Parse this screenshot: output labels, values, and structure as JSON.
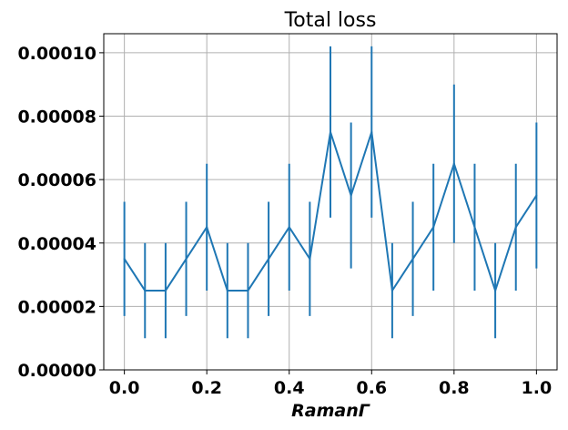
{
  "chart_data": {
    "type": "line",
    "title": "Total loss",
    "xlabel": "RamanΓ",
    "ylabel": "",
    "xlim": [
      -0.05,
      1.05
    ],
    "ylim": [
      0.0,
      0.000106
    ],
    "grid": true,
    "xticks": [
      0.0,
      0.2,
      0.4,
      0.6,
      0.8,
      1.0
    ],
    "xtick_labels": [
      "0.0",
      "0.2",
      "0.4",
      "0.6",
      "0.8",
      "1.0"
    ],
    "yticks": [
      0.0,
      2e-05,
      4e-05,
      6e-05,
      8e-05,
      0.0001
    ],
    "ytick_labels": [
      "0.00000",
      "0.00002",
      "0.00004",
      "0.00006",
      "0.00008",
      "0.00010"
    ],
    "color": "#1f77b4",
    "series": [
      {
        "x": [
          0.0,
          0.05,
          0.1,
          0.15,
          0.2,
          0.25,
          0.3,
          0.35,
          0.4,
          0.45,
          0.5,
          0.55,
          0.6,
          0.65,
          0.7,
          0.75,
          0.8,
          0.85,
          0.9,
          0.95,
          1.0
        ],
        "y": [
          3.5e-05,
          2.5e-05,
          2.5e-05,
          3.5e-05,
          4.5e-05,
          2.5e-05,
          2.5e-05,
          3.5e-05,
          4.5e-05,
          3.5e-05,
          7.5e-05,
          5.5e-05,
          7.5e-05,
          2.5e-05,
          3.5e-05,
          4.5e-05,
          6.5e-05,
          4.5e-05,
          2.5e-05,
          4.5e-05,
          5.5e-05
        ],
        "yerr": [
          1.8e-05,
          1.5e-05,
          1.5e-05,
          1.8e-05,
          2e-05,
          1.5e-05,
          1.5e-05,
          1.8e-05,
          2e-05,
          1.8e-05,
          2.7e-05,
          2.3e-05,
          2.7e-05,
          1.5e-05,
          1.8e-05,
          2e-05,
          2.5e-05,
          2e-05,
          1.5e-05,
          2e-05,
          2.3e-05
        ]
      }
    ]
  }
}
